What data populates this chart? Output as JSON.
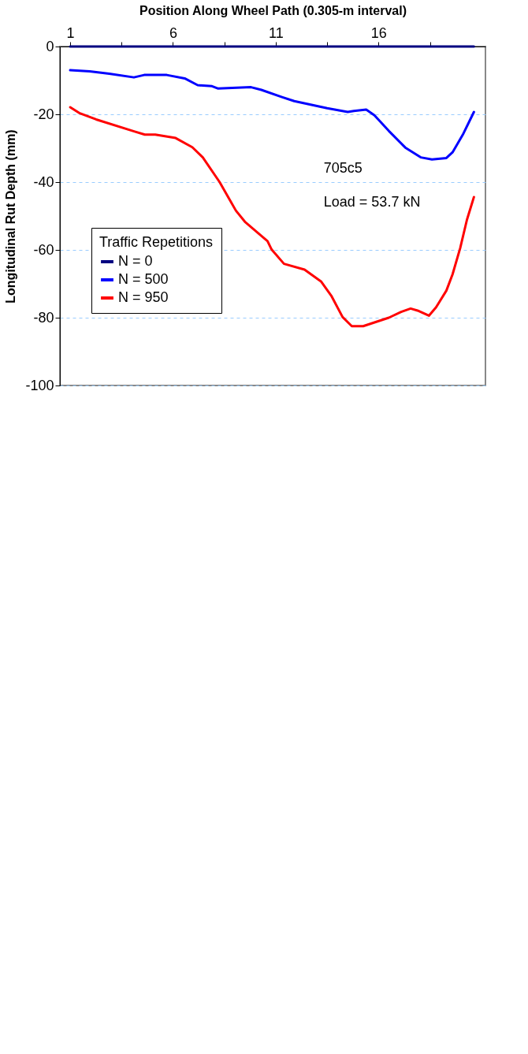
{
  "chart_data": {
    "type": "line",
    "xlabel": "Position Along Wheel Path (0.305-m interval)",
    "ylabel": "Longitudinal Rut Depth (mm)",
    "legend_title": "Traffic Repetitions",
    "annotations": [
      "705c5",
      "Load = 53.7 kN"
    ],
    "xlim": [
      0.5,
      21.2
    ],
    "xticks": [
      1,
      {
        "value": 3.5,
        "label": null
      },
      6,
      {
        "value": 8.5,
        "label": null
      },
      11,
      {
        "value": 13.5,
        "label": null
      },
      16,
      {
        "value": 18.5,
        "label": null
      }
    ],
    "ylim": [
      -100,
      0
    ],
    "yticks": [
      0,
      -20,
      -40,
      -60,
      -80,
      -100
    ],
    "grid": "y",
    "legend": "bottom left",
    "line_style": "solid",
    "marker": "none",
    "series": [
      {
        "name": "N = 0",
        "color": "#000080",
        "x": [
          1,
          20.64
        ],
        "values": [
          0,
          0
        ]
      },
      {
        "name": "N = 500",
        "color": "#0000ff",
        "x": [
          1.0,
          1.95,
          2.9,
          4.1,
          4.6,
          5.7,
          6.57,
          7.2,
          7.9,
          8.2,
          9.8,
          10.3,
          11.3,
          11.9,
          13.5,
          14.5,
          14.8,
          15.4,
          15.8,
          16.5,
          17.3,
          18.05,
          18.6,
          19.3,
          19.6,
          20.1,
          20.64
        ],
        "values": [
          -7,
          -7.3,
          -8,
          -9.1,
          -8.4,
          -8.4,
          -9.4,
          -11.4,
          -11.7,
          -12.4,
          -12,
          -12.8,
          -14.9,
          -16.1,
          -18.2,
          -19.3,
          -19,
          -18.6,
          -20.3,
          -24.9,
          -29.8,
          -32.7,
          -33.3,
          -32.9,
          -31.2,
          -26,
          -19.3
        ]
      },
      {
        "name": "N = 950",
        "color": "#ff0000",
        "x": [
          1.0,
          1.44,
          2.26,
          4.14,
          4.63,
          5.14,
          6.13,
          6.94,
          7.45,
          8.27,
          9.06,
          9.5,
          10.6,
          10.8,
          11.4,
          12.4,
          13.2,
          13.7,
          14.25,
          14.7,
          15.25,
          16.5,
          17.1,
          17.56,
          17.9,
          18.45,
          18.8,
          19.3,
          19.6,
          19.97,
          20.3,
          20.64
        ],
        "values": [
          -17.9,
          -19.6,
          -21.5,
          -25.1,
          -26,
          -26,
          -27,
          -29.7,
          -32.7,
          -40,
          -48.4,
          -51.7,
          -57.4,
          -59.9,
          -64.1,
          -65.8,
          -69.3,
          -73.5,
          -79.8,
          -82.5,
          -82.5,
          -80,
          -78.3,
          -77.3,
          -77.9,
          -79.4,
          -76.9,
          -72,
          -67.2,
          -59.5,
          -51.1,
          -44.4
        ]
      }
    ]
  }
}
